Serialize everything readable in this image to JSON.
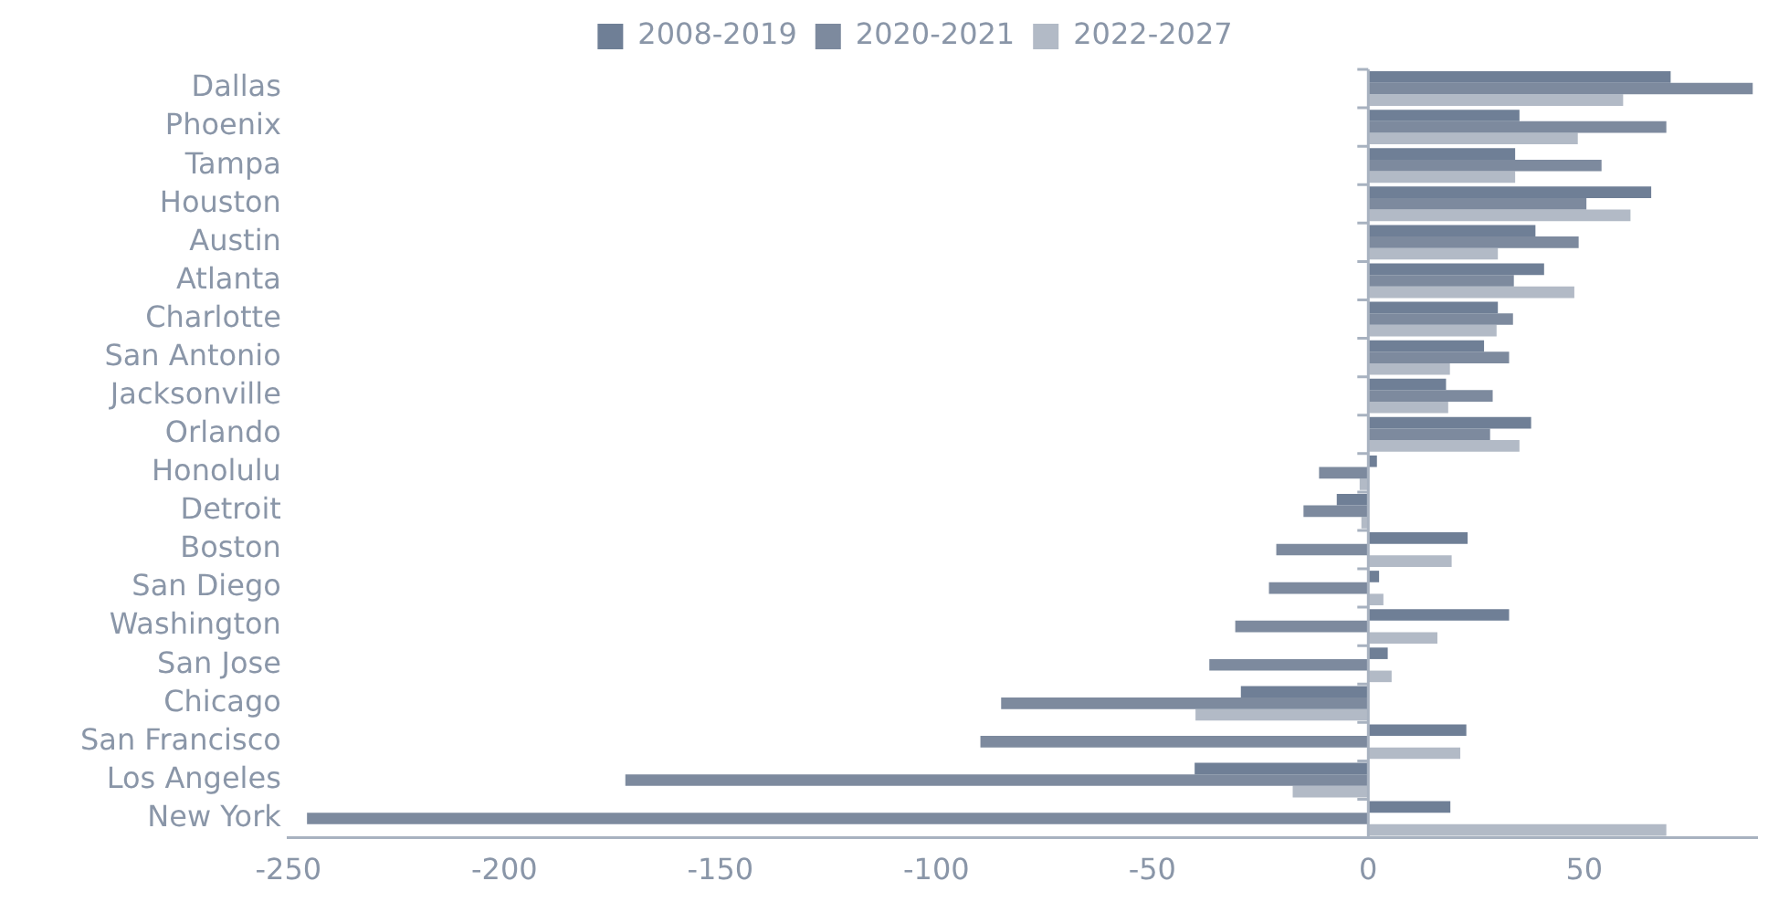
{
  "chart_data": {
    "type": "bar",
    "orientation": "horizontal",
    "categories": [
      "Dallas",
      "Phoenix",
      "Tampa",
      "Houston",
      "Austin",
      "Atlanta",
      "Charlotte",
      "San Antonio",
      "Jacksonville",
      "Orlando",
      "Honolulu",
      "Detroit",
      "Boston",
      "San Diego",
      "Washington",
      "San Jose",
      "Chicago",
      "San Francisco",
      "Los Angeles",
      "New York"
    ],
    "series": [
      {
        "name": "2008-2019",
        "color": "#6f7f96",
        "values": [
          70,
          35,
          34,
          65.5,
          38.7,
          40.7,
          30,
          26.8,
          18,
          37.7,
          2,
          -7.3,
          23,
          2.5,
          32.6,
          4.5,
          -29.5,
          22.7,
          -40.2,
          19
        ]
      },
      {
        "name": "2020-2021",
        "color": "#7d8a9e",
        "values": [
          89,
          69,
          54,
          50.5,
          48.7,
          33.7,
          33.5,
          32.6,
          28.8,
          28.2,
          -11.4,
          -15,
          -21.3,
          -23,
          -30.8,
          -36.8,
          -85,
          -89.8,
          -172,
          -245.7
        ]
      },
      {
        "name": "2022-2027",
        "color": "#b2bac6",
        "values": [
          59,
          48.5,
          34,
          60.7,
          30,
          47.7,
          29.7,
          18.9,
          18.5,
          35,
          -2,
          -1.6,
          19.3,
          3.5,
          16,
          5.4,
          -40,
          21.3,
          -17.5,
          69
        ]
      }
    ],
    "xlim": [
      -250,
      90
    ],
    "xticks": [
      -250,
      -200,
      -150,
      -100,
      -50,
      0,
      50
    ],
    "ref_lines": [
      {
        "axis": "x",
        "value": 0,
        "color": "#a8b2c0",
        "line_style": "solid"
      }
    ],
    "grid": false,
    "legend": "top"
  }
}
